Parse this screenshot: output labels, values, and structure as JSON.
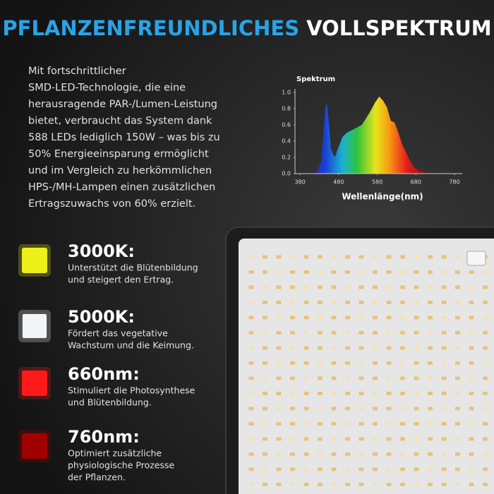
{
  "title": {
    "part1": "PFLANZENFREUNDLICHES",
    "part2": "VOLLSPEKTRUM"
  },
  "description": [
    "Mit fortschrittlicher",
    "SMD-LED-Technologie, die eine",
    "herausragende PAR-/Lumen-Leistung",
    "bietet, verbraucht das System dank",
    "588 LEDs lediglich 150W – was bis zu",
    "50% Energieeinsparung ermöglicht",
    "und im Vergleich zu herkömmlichen",
    "HPS-/MH-Lampen einen zusätzlichen",
    "Ertragszuwachs von 60% erzielt."
  ],
  "chart_data": {
    "type": "area",
    "title": "Spektrum",
    "x_label": "Wellenlänge(nm)",
    "x": [
      415,
      425,
      435,
      440,
      445,
      450,
      455,
      460,
      470,
      480,
      490,
      500,
      520,
      540,
      560,
      575,
      585,
      595,
      605,
      615,
      625,
      635,
      645,
      655,
      665,
      675,
      690,
      710,
      730,
      750
    ],
    "values": [
      0,
      0.03,
      0.15,
      0.45,
      0.8,
      0.87,
      0.6,
      0.3,
      0.2,
      0.33,
      0.45,
      0.5,
      0.55,
      0.6,
      0.75,
      0.88,
      0.95,
      0.9,
      0.82,
      0.65,
      0.63,
      0.5,
      0.35,
      0.26,
      0.15,
      0.08,
      0.03,
      0.01,
      0.005,
      0
    ],
    "xlim": [
      367,
      800
    ],
    "ylim": [
      0,
      1
    ],
    "xticks": [
      380,
      480,
      580,
      680,
      780
    ],
    "yticks": [
      {
        "value": 0,
        "label": "0.0"
      },
      0.2,
      0.4,
      0.6,
      0.8,
      {
        "value": 1,
        "label": "1.0"
      }
    ]
  },
  "features": [
    {
      "label": "3000K:",
      "color": "#eef01a",
      "description": [
        "Unterstützt die Blütenbildung",
        "und steigert den Ertrag."
      ]
    },
    {
      "label": "5000K:",
      "color": "#f2f5f8",
      "description": [
        "Fördert das vegetative",
        "Wachstum und die Keimung."
      ]
    },
    {
      "label": "660nm:",
      "color": "#ff1a1a",
      "description": [
        "Stimuliert die Photosynthese",
        "und Blütenbildung."
      ]
    },
    {
      "label": "760nm:",
      "color": "#a00000",
      "description": [
        "Optimiert zusätzliche",
        "physiologische Prozesse",
        "der Pflanzen."
      ]
    }
  ]
}
